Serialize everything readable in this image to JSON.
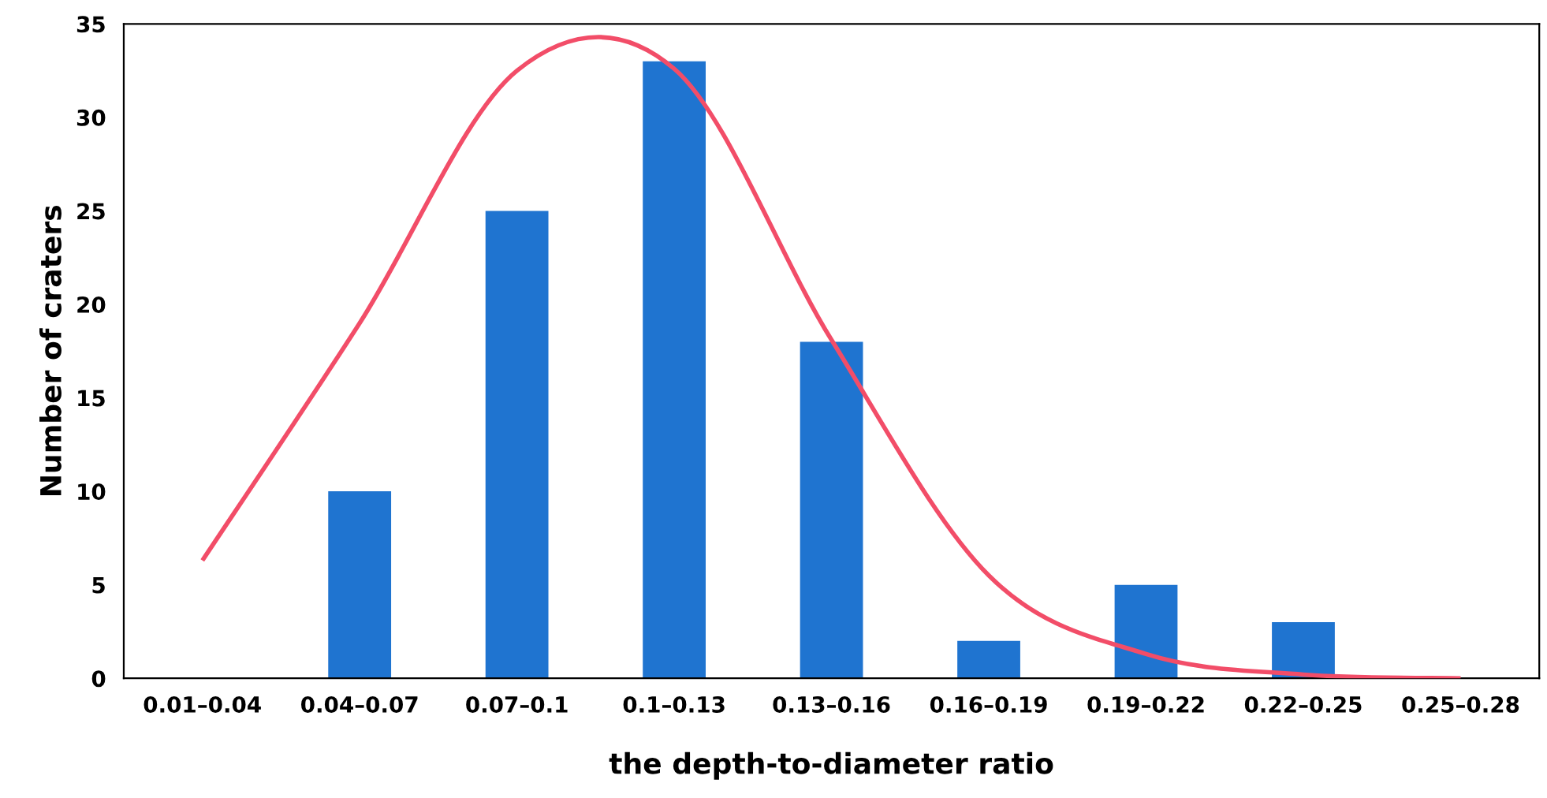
{
  "chart_data": {
    "type": "bar",
    "xlabel": "the depth-to-diameter ratio",
    "ylabel": "Number of craters",
    "categories": [
      "0.01–0.04",
      "0.04–0.07",
      "0.07–0.1",
      "0.1–0.13",
      "0.13–0.16",
      "0.16–0.19",
      "0.19–0.22",
      "0.22–0.25",
      "0.25–0.28"
    ],
    "series": [
      {
        "color": "#1f74d0",
        "values": [
          0,
          10,
          25,
          33,
          18,
          2,
          5,
          3,
          0
        ]
      },
      {
        "type": "line",
        "color": "#f24d68",
        "values": [
          6.3,
          19,
          32.5,
          32.6,
          18.1,
          5.5,
          1.3,
          0.2,
          0
        ]
      }
    ],
    "ylim": [
      0,
      35
    ],
    "yticks": [
      0,
      5,
      10,
      15,
      20,
      25,
      30,
      35
    ],
    "grid": false,
    "marker": "none",
    "line_style": "solid"
  }
}
